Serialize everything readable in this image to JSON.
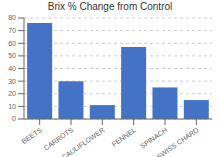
{
  "chart_data": {
    "type": "bar",
    "title": "Brix % Change from Control",
    "categories": [
      "BEETS",
      "CARROTS",
      "CAULIFLOWER",
      "FENNEL",
      "SPINACH",
      "SWISS CHARD"
    ],
    "values": [
      76,
      30,
      11,
      57,
      25,
      15
    ],
    "color": "#4472C4",
    "ylim": [
      0,
      80
    ],
    "yticks": [
      0,
      10,
      20,
      30,
      40,
      50,
      60,
      70,
      80
    ],
    "grid": true
  }
}
